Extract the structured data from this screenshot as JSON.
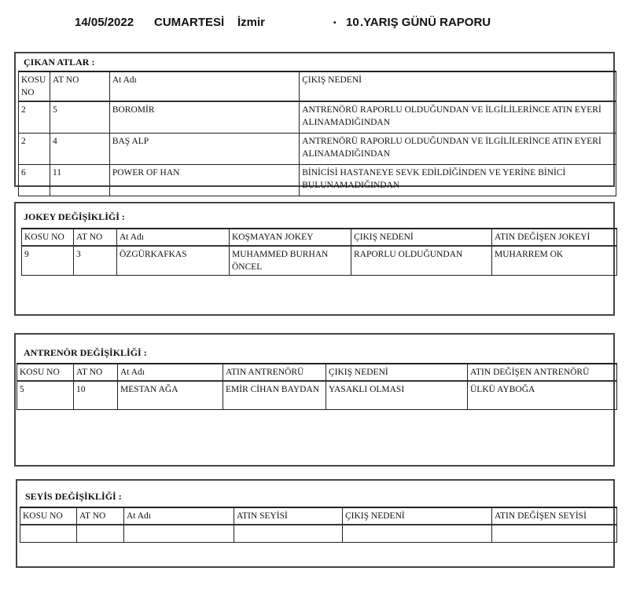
{
  "header": {
    "date": "14/05/2022",
    "day": "CUMARTESİ",
    "city": "İzmir",
    "race_day": "10",
    "report_title": ".YARIŞ GÜNÜ RAPORU"
  },
  "sections": [
    {
      "title": "ÇIKAN ATLAR :",
      "columns": [
        "KOSU NO",
        "AT NO",
        "At Adı",
        "ÇIKIŞ NEDENİ"
      ],
      "rows": [
        [
          "2",
          "5",
          "BOROMİR",
          "ANTRENÖRÜ RAPORLU OLDUĞUNDAN VE İLGİLİLERİNCE ATIN EYERİ ALINAMADIĞINDAN"
        ],
        [
          "2",
          "4",
          "BAŞ ALP",
          "ANTRENÖRÜ RAPORLU OLDUĞUNDAN VE İLGİLİLERİNCE ATIN EYERİ ALINAMADIĞINDAN"
        ],
        [
          "6",
          "11",
          "POWER OF HAN",
          "BİNİCİSİ HASTANEYE SEVK  EDİLDİĞİNDEN VE YERİNE BİNİCİ BULUNAMADIĞINDAN"
        ]
      ]
    },
    {
      "title": "JOKEY DEĞİŞİKLİĞİ :",
      "columns": [
        "KOSU NO",
        "AT NO",
        "At Adı",
        "KOŞMAYAN JOKEY",
        "ÇIKIŞ NEDENİ",
        "ATIN DEĞİŞEN JOKEYİ"
      ],
      "rows": [
        [
          "9",
          "3",
          "ÖZGÜRKAFKAS",
          "MUHAMMED BURHAN ÖNCEL",
          "RAPORLU OLDUĞUNDAN",
          "MUHARREM OK"
        ]
      ]
    },
    {
      "title": "ANTRENÖR DEĞİŞİKLİĞİ :",
      "columns": [
        "KOSU NO",
        "AT NO",
        "At Adı",
        "ATIN ANTRENÖRÜ",
        "ÇIKIŞ NEDENİ",
        "ATIN DEĞİŞEN ANTRENÖRÜ"
      ],
      "rows": [
        [
          "5",
          "10",
          "MESTAN AĞA",
          "EMİR CİHAN BAYDAN",
          "YASAKLI OLMASI",
          "ÜLKÜ AYBOĞA"
        ]
      ]
    },
    {
      "title": "SEYİS DEĞİŞİKLİĞİ :",
      "columns": [
        "KOSU NO",
        "AT NO",
        "At Adı",
        "ATIN SEYİSİ",
        "ÇIKIŞ NEDENİ",
        "ATIN DEĞİŞEN SEYİSİ"
      ],
      "rows": [
        [
          "",
          "",
          "",
          "",
          "",
          ""
        ]
      ]
    }
  ]
}
